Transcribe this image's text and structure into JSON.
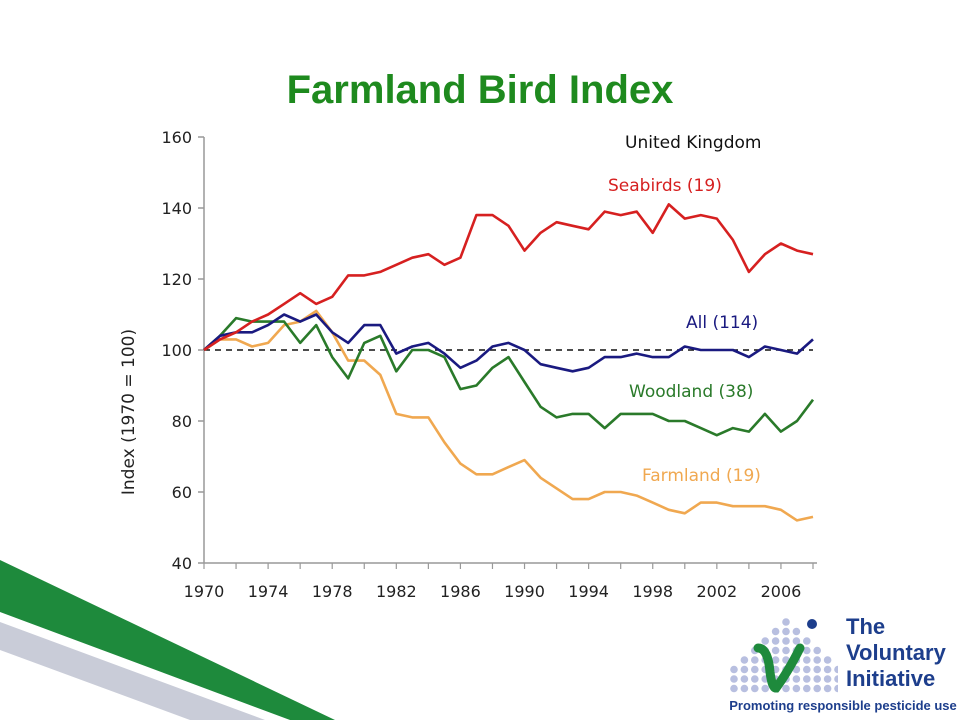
{
  "slide": {
    "title": "Farmland Bird Index"
  },
  "logo": {
    "line1": "The",
    "line2": "Voluntary",
    "line3": "Initiative",
    "tagline": "Promoting responsible pesticide use"
  },
  "colors": {
    "title": "#1e8a1e",
    "stripe_green": "#1e8a3c",
    "stripe_grey": "#c9ccd8",
    "logo_blue": "#1d3e8c"
  },
  "chart_data": {
    "type": "line",
    "title": "",
    "annotation": "United Kingdom",
    "xlabel": "",
    "ylabel": "Index (1970 = 100)",
    "xlim": [
      1970,
      2008
    ],
    "ylim": [
      40,
      160
    ],
    "yticks": [
      40,
      60,
      80,
      100,
      120,
      140,
      160
    ],
    "xticks": [
      1970,
      1974,
      1978,
      1982,
      1986,
      1990,
      1994,
      1998,
      2002,
      2006
    ],
    "reference_line": {
      "y": 100,
      "style": "dashed"
    },
    "legend": "inline labels",
    "x": [
      1970,
      1971,
      1972,
      1973,
      1974,
      1975,
      1976,
      1977,
      1978,
      1979,
      1980,
      1981,
      1982,
      1983,
      1984,
      1985,
      1986,
      1987,
      1988,
      1989,
      1990,
      1991,
      1992,
      1993,
      1994,
      1995,
      1996,
      1997,
      1998,
      1999,
      2000,
      2001,
      2002,
      2003,
      2004,
      2005,
      2006,
      2007,
      2008
    ],
    "series": [
      {
        "name": "Seabirds (19)",
        "color": "#d62020",
        "values": [
          100,
          103,
          105,
          108,
          110,
          113,
          116,
          113,
          115,
          121,
          121,
          122,
          124,
          126,
          127,
          124,
          126,
          138,
          138,
          135,
          128,
          133,
          136,
          135,
          134,
          139,
          138,
          139,
          133,
          141,
          137,
          138,
          137,
          131,
          122,
          127,
          130,
          128,
          127
        ]
      },
      {
        "name": "All (114)",
        "color": "#1a1a80",
        "values": [
          100,
          104,
          105,
          105,
          107,
          110,
          108,
          110,
          105,
          102,
          107,
          107,
          99,
          101,
          102,
          99,
          95,
          97,
          101,
          102,
          100,
          96,
          95,
          94,
          95,
          98,
          98,
          99,
          98,
          98,
          101,
          100,
          100,
          100,
          98,
          101,
          100,
          99,
          103
        ]
      },
      {
        "name": "Woodland (38)",
        "color": "#2a7a2a",
        "values": [
          100,
          104,
          109,
          108,
          108,
          108,
          102,
          107,
          98,
          92,
          102,
          104,
          94,
          100,
          100,
          98,
          89,
          90,
          95,
          98,
          91,
          84,
          81,
          82,
          82,
          78,
          82,
          82,
          82,
          80,
          80,
          78,
          76,
          78,
          77,
          82,
          77,
          80,
          86
        ]
      },
      {
        "name": "Farmland (19)",
        "color": "#f0a850",
        "values": [
          100,
          103,
          103,
          101,
          102,
          107,
          108,
          111,
          105,
          97,
          97,
          93,
          82,
          81,
          81,
          74,
          68,
          65,
          65,
          67,
          69,
          64,
          61,
          58,
          58,
          60,
          60,
          59,
          57,
          55,
          54,
          57,
          57,
          56,
          56,
          56,
          55,
          52,
          53
        ]
      }
    ]
  }
}
